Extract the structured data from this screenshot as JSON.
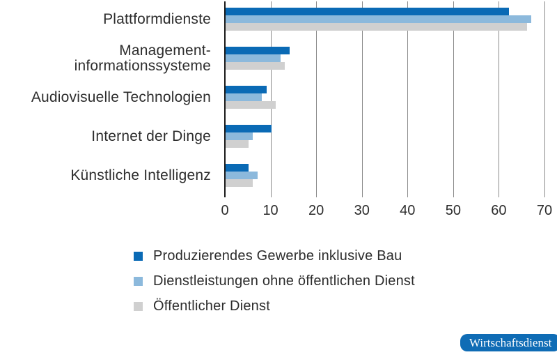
{
  "chart_data": {
    "type": "bar",
    "orientation": "horizontal",
    "title": "",
    "categories": [
      "Plattformdienste",
      "Management-informationssysteme",
      "Audiovisuelle Technologien",
      "Internet der Dinge",
      "Künstliche Intelligenz"
    ],
    "category_label_lines": [
      [
        "Plattformdienste"
      ],
      [
        "Management-",
        "informationssysteme"
      ],
      [
        "Audiovisuelle Technologien"
      ],
      [
        "Internet der Dinge"
      ],
      [
        "Künstliche Intelligenz"
      ]
    ],
    "series": [
      {
        "name": "Produzierendes Gewerbe inklusive Bau",
        "color": "#0a6ab5",
        "values": [
          62,
          14,
          9,
          10,
          5
        ]
      },
      {
        "name": "Dienstleistungen ohne öffentlichen Dienst",
        "color": "#8cb9dc",
        "values": [
          67,
          12,
          8,
          6,
          7
        ]
      },
      {
        "name": "Öffentlicher Dienst",
        "color": "#d0d0d0",
        "values": [
          66,
          13,
          11,
          5,
          6
        ]
      }
    ],
    "x_ticks": [
      0,
      10,
      20,
      30,
      40,
      50,
      60,
      70
    ],
    "xlim": [
      0,
      70
    ],
    "grid": true,
    "legend_position": "bottom-left",
    "axis_color": "#1a1a1a",
    "gridline_color": "#8a8a8a",
    "text_color": "#2d2d2d"
  },
  "branding": {
    "label": "Wirtschaftsdienst",
    "background": "#0f6cb5",
    "text_color": "#ffffff"
  }
}
